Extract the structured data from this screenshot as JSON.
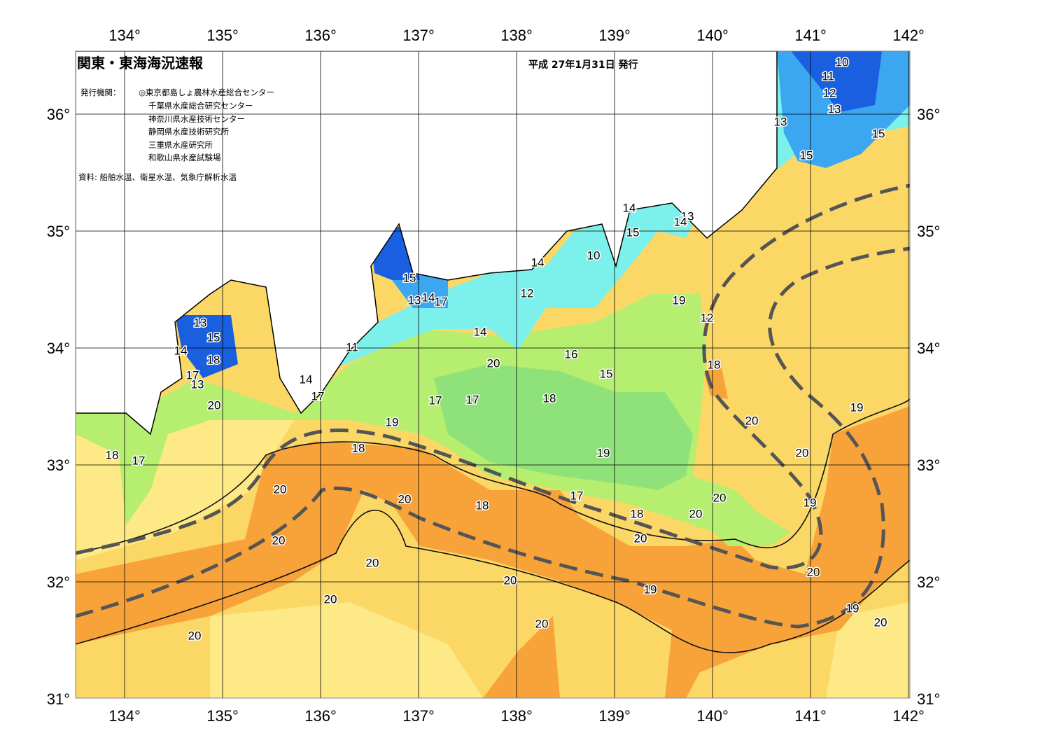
{
  "title": "関東・東海海況速報",
  "issued": "平成 27年1月31日 発行",
  "agencies_label": "発行機関：",
  "agencies": [
    "◎東京都島しょ農林水産総合センター",
    "千葉県水産総合研究センター",
    "神奈川県水産技術センター",
    "静岡県水産技術研究所",
    "三重県水産研究所",
    "和歌山県水産試験場"
  ],
  "source": "資料: 船舶水温、衛星水温、気象庁解析水温",
  "longitudes": [
    "134°",
    "135°",
    "136°",
    "137°",
    "138°",
    "139°",
    "140°",
    "141°",
    "142°"
  ],
  "latitudes": [
    "36°",
    "35°",
    "34°",
    "33°",
    "32°",
    "31°"
  ],
  "contour_labels": [
    10,
    11,
    12,
    13,
    13,
    15,
    15,
    14,
    15,
    13,
    14,
    14,
    10,
    15,
    12,
    13,
    14,
    17,
    19,
    12,
    13,
    15,
    14,
    11,
    14,
    18,
    16,
    20,
    18,
    15,
    17,
    13,
    14,
    17,
    17,
    17,
    18,
    20,
    19,
    19,
    20,
    18,
    18,
    17,
    19,
    20,
    20,
    20,
    18,
    17,
    20,
    19,
    18,
    20,
    20,
    20,
    20,
    20,
    20,
    19,
    20,
    19,
    20,
    20,
    20
  ]
}
